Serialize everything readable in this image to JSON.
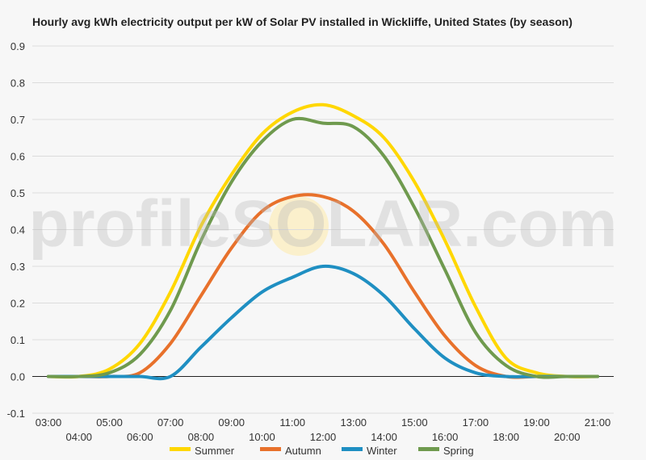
{
  "chart_data": {
    "type": "line",
    "title": "Hourly avg kWh electricity output per kW of Solar PV installed in Wickliffe, United States (by season)",
    "xlabel": "",
    "ylabel": "",
    "x_ticks": [
      "03:00",
      "04:00",
      "05:00",
      "06:00",
      "07:00",
      "08:00",
      "09:00",
      "10:00",
      "11:00",
      "12:00",
      "13:00",
      "14:00",
      "15:00",
      "16:00",
      "17:00",
      "18:00",
      "19:00",
      "20:00",
      "21:00"
    ],
    "x_hours": [
      3,
      4,
      5,
      6,
      7,
      8,
      9,
      10,
      11,
      12,
      13,
      14,
      15,
      16,
      17,
      18,
      19,
      20,
      21
    ],
    "y_ticks": [
      "-0.1",
      "0.0",
      "0.1",
      "0.2",
      "0.3",
      "0.4",
      "0.5",
      "0.6",
      "0.7",
      "0.8",
      "0.9"
    ],
    "ylim": [
      -0.1,
      0.9
    ],
    "grid": true,
    "legend_position": "bottom",
    "watermark": "profileSOLAR.com",
    "series": [
      {
        "name": "Summer",
        "color": "#ffd700",
        "values": [
          0,
          0,
          0.02,
          0.09,
          0.23,
          0.41,
          0.55,
          0.66,
          0.72,
          0.74,
          0.71,
          0.65,
          0.53,
          0.37,
          0.19,
          0.05,
          0.01,
          0,
          0
        ]
      },
      {
        "name": "Autumn",
        "color": "#e8712b",
        "values": [
          0,
          0,
          0,
          0.01,
          0.09,
          0.22,
          0.35,
          0.45,
          0.49,
          0.49,
          0.45,
          0.36,
          0.23,
          0.11,
          0.03,
          0,
          0,
          0,
          0
        ]
      },
      {
        "name": "Winter",
        "color": "#1f8fc2",
        "values": [
          0,
          0,
          0,
          0,
          0,
          0.08,
          0.16,
          0.23,
          0.27,
          0.3,
          0.28,
          0.22,
          0.13,
          0.05,
          0.01,
          0,
          0,
          0,
          0
        ]
      },
      {
        "name": "Spring",
        "color": "#6f9a4e",
        "values": [
          0,
          0,
          0.01,
          0.06,
          0.18,
          0.37,
          0.53,
          0.64,
          0.7,
          0.69,
          0.68,
          0.6,
          0.46,
          0.29,
          0.12,
          0.03,
          0,
          0,
          0
        ]
      }
    ]
  }
}
